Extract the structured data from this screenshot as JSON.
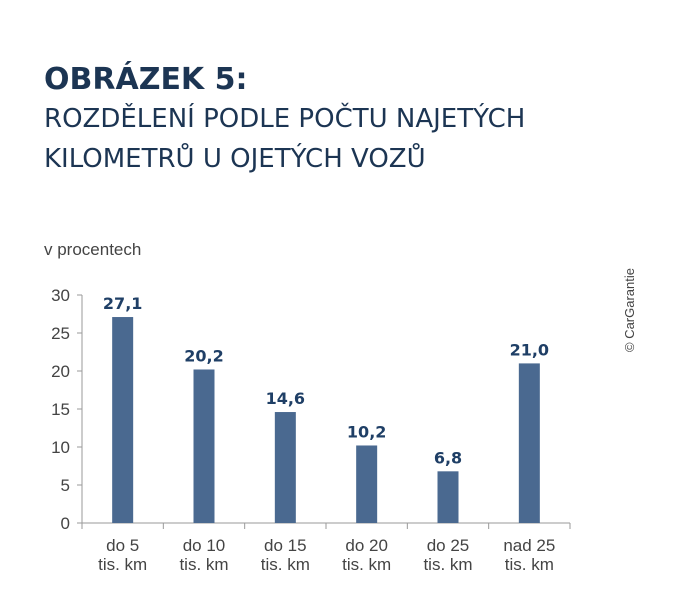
{
  "figure": {
    "label": "OBRÁZEK 5:",
    "title_line1": "ROZDĚLENÍ PODLE POČTU NAJETÝCH",
    "title_line2": "KILOMETRŮ U OJETÝCH VOZŮ"
  },
  "unit": "v procentech",
  "copyright": "© CarGarantie",
  "colors": {
    "bar": "#4a6990",
    "title": "#1c3553",
    "value_label": "#1f3f66",
    "axis": "#9a9a9a",
    "tick_text": "#444444"
  },
  "chart_data": {
    "type": "bar",
    "categories": [
      [
        "do 5",
        "tis. km"
      ],
      [
        "do 10",
        "tis. km"
      ],
      [
        "do 15",
        "tis. km"
      ],
      [
        "do 20",
        "tis. km"
      ],
      [
        "do 25",
        "tis. km"
      ],
      [
        "nad 25",
        "tis. km"
      ]
    ],
    "values": [
      27.1,
      20.2,
      14.6,
      10.2,
      6.8,
      21.0
    ],
    "value_labels": [
      "27,1",
      "20,2",
      "14,6",
      "10,2",
      "6,8",
      "21,0"
    ],
    "ylabel": "v procentech",
    "ylim": [
      0,
      30
    ],
    "yticks": [
      0,
      5,
      10,
      15,
      20,
      25,
      30
    ],
    "grid": false,
    "legend": "none"
  }
}
